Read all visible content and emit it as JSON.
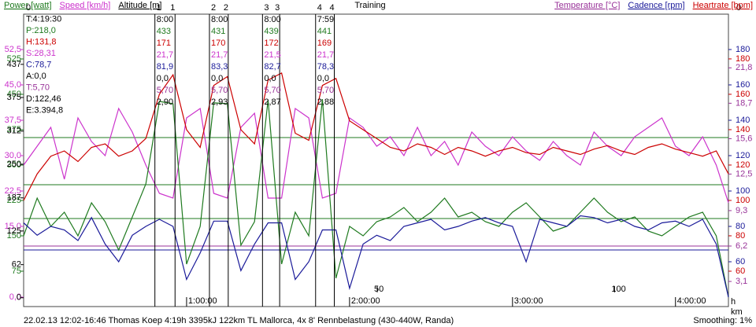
{
  "chart_data": {
    "type": "line",
    "title": "Training",
    "footer": "22.02.13 12:02-16:46 Thomas Koep 4:19h 3395kJ 122km TL Mallorca, 4x 8' Rennbelastung (430-440W, Randa)",
    "smoothing": "Smoothing: 1%",
    "corner_label": "0",
    "x_unit": "h",
    "xlim": [
      0,
      15570
    ],
    "xticks": [
      {
        "value": 3600,
        "label": "1:00:00"
      },
      {
        "value": 7200,
        "label": "2:00:00"
      },
      {
        "value": 10800,
        "label": "3:00:00"
      },
      {
        "value": 14400,
        "label": "4:00:00"
      }
    ],
    "distance_axis": {
      "unit": "km",
      "lim": [
        -24.5,
        124
      ],
      "ticks": [
        50,
        100
      ]
    },
    "axes": [
      {
        "id": "power",
        "label": "Power [watt]",
        "color": "#1f7a1f",
        "side": "left",
        "ylim": [
          0,
          620
        ],
        "yticks": [
          525,
          450,
          375,
          300,
          225,
          150,
          75
        ]
      },
      {
        "id": "speed",
        "label": "Speed [km/h]",
        "color": "#cc33cc",
        "side": "left",
        "ylim": [
          -2,
          60
        ],
        "yticks": [
          {
            "value": 52.5,
            "label": "52,5"
          },
          {
            "value": 45,
            "label": "45,0"
          },
          {
            "value": 37.5,
            "label": "37,5"
          },
          {
            "value": 30,
            "label": "30,0"
          },
          {
            "value": 22.5,
            "label": "22,5"
          },
          {
            "value": 15,
            "label": "15,0"
          },
          {
            "value": 0,
            "label": "0,0"
          }
        ]
      },
      {
        "id": "altitude",
        "label": "Altitude [m]",
        "color": "#000000",
        "side": "left",
        "ylim": [
          -16.5,
          531
        ],
        "yticks": [
          437,
          375,
          312,
          250,
          187,
          125,
          62,
          0
        ]
      },
      {
        "id": "temperature",
        "label": "Temperature [°C]",
        "color": "#993399",
        "side": "right",
        "ylim": [
          0.9,
          26.5
        ],
        "yticks": [
          {
            "value": 21.8,
            "label": "21,8"
          },
          {
            "value": 18.7,
            "label": "18,7"
          },
          {
            "value": 15.6,
            "label": "15,6"
          },
          {
            "value": 12.5,
            "label": "12,5"
          },
          {
            "value": 9.3,
            "label": "9,3"
          },
          {
            "value": 6.2,
            "label": "6,2"
          },
          {
            "value": 3.1,
            "label": "3,1"
          }
        ]
      },
      {
        "id": "cadence",
        "label": "Cadence [rpm]",
        "color": "#1a1a99",
        "side": "right",
        "ylim": [
          34.67,
          200
        ],
        "yticks": [
          180,
          160,
          140,
          120,
          100,
          80,
          60
        ]
      },
      {
        "id": "heartrate",
        "label": "Heartrate [bpm]",
        "color": "#cc0000",
        "side": "right",
        "ylim": [
          40,
          205.3
        ],
        "yticks": [
          180,
          160,
          140,
          120,
          100,
          80,
          60
        ]
      }
    ],
    "x": [
      0,
      300,
      600,
      900,
      1200,
      1500,
      1800,
      2100,
      2400,
      2700,
      3000,
      3300,
      3600,
      3900,
      4200,
      4500,
      4800,
      5100,
      5400,
      5700,
      6000,
      6300,
      6600,
      6900,
      7200,
      7500,
      7800,
      8100,
      8400,
      8700,
      9000,
      9300,
      9600,
      9900,
      10200,
      10500,
      10800,
      11100,
      11400,
      11700,
      12000,
      12300,
      12600,
      12900,
      13200,
      13500,
      13800,
      14100,
      14400,
      14700,
      15000,
      15300,
      15570
    ],
    "series": [
      {
        "axis": "speed",
        "values": [
          28,
          32,
          36,
          25,
          38,
          33,
          30,
          40,
          35,
          28,
          22,
          21,
          38,
          40,
          22,
          21,
          36,
          39,
          21,
          21,
          40,
          38,
          21,
          22,
          38,
          36,
          32,
          34,
          30,
          36,
          30,
          33,
          28,
          35,
          32,
          30,
          34,
          31,
          29,
          33,
          30,
          28,
          35,
          32,
          30,
          34,
          36,
          38,
          32,
          30,
          34,
          28,
          20
        ]
      },
      {
        "axis": "heartrate",
        "values": [
          100,
          115,
          125,
          128,
          122,
          130,
          132,
          125,
          128,
          135,
          160,
          171,
          140,
          130,
          165,
          170,
          140,
          132,
          168,
          172,
          138,
          134,
          165,
          169,
          145,
          140,
          135,
          130,
          128,
          132,
          130,
          126,
          130,
          128,
          125,
          128,
          130,
          127,
          126,
          130,
          128,
          126,
          129,
          131,
          128,
          126,
          130,
          132,
          129,
          127,
          125,
          128,
          115
        ]
      },
      {
        "axis": "power",
        "values": [
          150,
          230,
          170,
          200,
          150,
          220,
          180,
          120,
          190,
          260,
          435,
          430,
          90,
          170,
          432,
          430,
          130,
          180,
          438,
          90,
          200,
          150,
          440,
          60,
          170,
          150,
          180,
          190,
          210,
          180,
          200,
          230,
          190,
          200,
          180,
          170,
          200,
          220,
          190,
          160,
          170,
          200,
          230,
          200,
          180,
          190,
          160,
          150,
          170,
          190,
          200,
          150,
          20
        ]
      },
      {
        "axis": "cadence",
        "values": [
          82,
          75,
          80,
          78,
          72,
          85,
          70,
          60,
          75,
          80,
          84,
          80,
          50,
          65,
          83,
          83,
          55,
          70,
          82,
          82,
          50,
          60,
          78,
          78,
          45,
          70,
          75,
          72,
          80,
          82,
          84,
          78,
          80,
          83,
          85,
          82,
          80,
          60,
          84,
          82,
          80,
          86,
          85,
          82,
          84,
          80,
          78,
          82,
          83,
          80,
          84,
          70,
          40
        ]
      }
    ],
    "summary": [
      {
        "text": "0",
        "axis": "altitude"
      },
      {
        "text": "T:4:19:30",
        "axis": "altitude"
      },
      {
        "text": "P:218,0",
        "axis": "power"
      },
      {
        "text": "H:131,8",
        "axis": "heartrate"
      },
      {
        "text": "S:28,31",
        "axis": "speed"
      },
      {
        "text": "C:78,7",
        "axis": "cadence"
      },
      {
        "text": "A:0,0",
        "axis": "altitude"
      },
      {
        "text": "T:5,70",
        "axis": "temperature"
      },
      {
        "text": "D:122,46",
        "axis": "altitude"
      },
      {
        "text": "E:3.394,8",
        "axis": "altitude"
      }
    ],
    "interval_row_axes": [
      "altitude",
      "altitude",
      "power",
      "heartrate",
      "speed",
      "cadence",
      "altitude",
      "temperature",
      "altitude"
    ],
    "intervals": [
      {
        "start": 2900,
        "end": 3345,
        "lines": [
          "1",
          "8:00",
          "433",
          "171",
          "21,7",
          "81,9",
          "0,0",
          "5,70",
          "2,90"
        ]
      },
      {
        "start": 4105,
        "end": 4520,
        "lines": [
          "2",
          "8:00",
          "431",
          "170",
          "21,7",
          "83,3",
          "0,0",
          "5,70",
          "2,93"
        ]
      },
      {
        "start": 5277,
        "end": 5656,
        "lines": [
          "3",
          "8:00",
          "439",
          "172",
          "21,5",
          "82,7",
          "0,0",
          "5,70",
          "2,87"
        ]
      },
      {
        "start": 6450,
        "end": 6863,
        "lines": [
          "4",
          "7:59",
          "441",
          "169",
          "21,7",
          "78,3",
          "0,0",
          "5,70",
          "2,88"
        ]
      }
    ]
  }
}
